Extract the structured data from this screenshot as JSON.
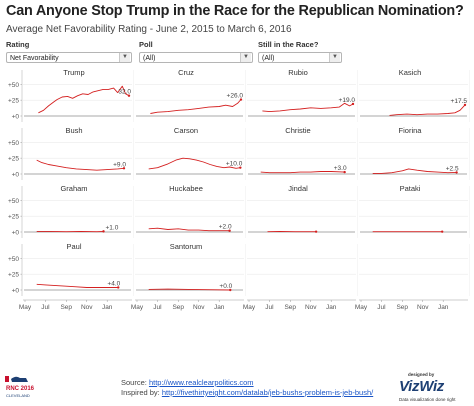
{
  "header": {
    "title": "Can Anyone Stop Trump in the Race for the Republican Nomination?",
    "subtitle": "Average Net Favorability Rating - June 2, 2015 to March 6, 2016"
  },
  "filters": [
    {
      "label": "Rating",
      "value": "Net Favorability"
    },
    {
      "label": "Poll",
      "value": "(All)"
    },
    {
      "label": "Still in the Race?",
      "value": "(All)"
    }
  ],
  "footer": {
    "source_prefix": "Source: ",
    "source_link": "http://www.realclearpolitics.com",
    "inspired_prefix": "Inspired by: ",
    "inspired_link": "http://fivethirtyeight.com/datalab/jeb-bushs-problem-is-jeb-bush/",
    "logo_text": "RNC 2016",
    "logo_sub": "CLEVELAND",
    "brand_top": "designed by",
    "brand": "VizWiz",
    "brand_sub": "Data visualization done right"
  },
  "colors": {
    "line": "#d42020",
    "grid": "#e6e6e6",
    "zero_line": "#555555"
  },
  "chart_data": {
    "type": "line",
    "title": "Can Anyone Stop Trump in the Race for the Republican Nomination?",
    "subtitle": "Average Net Favorability Rating - June 2, 2015 to March 6, 2016",
    "ylabel": "",
    "xlabel": "",
    "y_ticks": [
      "+50",
      "+25",
      "+0"
    ],
    "y_tick_values": [
      50,
      25,
      0
    ],
    "ylim": [
      0,
      60
    ],
    "x_ticks": [
      "May",
      "Jul",
      "Sep",
      "Nov",
      "Jan"
    ],
    "x_tick_months": [
      "2015-05",
      "2015-07",
      "2015-09",
      "2015-11",
      "2016-01"
    ],
    "x_range": [
      "2015-05-01",
      "2016-03-06"
    ],
    "grid": true,
    "panels": [
      {
        "name": "Trump",
        "end_label": "32.0",
        "series": [
          [
            "2015-06-10",
            5
          ],
          [
            "2015-06-25",
            9
          ],
          [
            "2015-07-10",
            16
          ],
          [
            "2015-07-25",
            22
          ],
          [
            "2015-08-05",
            26
          ],
          [
            "2015-08-20",
            30
          ],
          [
            "2015-09-05",
            31
          ],
          [
            "2015-09-20",
            28
          ],
          [
            "2015-10-05",
            32
          ],
          [
            "2015-10-20",
            35
          ],
          [
            "2015-11-05",
            34
          ],
          [
            "2015-11-20",
            38
          ],
          [
            "2015-12-05",
            40
          ],
          [
            "2015-12-20",
            42
          ],
          [
            "2016-01-05",
            42
          ],
          [
            "2016-01-20",
            44
          ],
          [
            "2016-02-01",
            37
          ],
          [
            "2016-02-15",
            47
          ],
          [
            "2016-02-25",
            35
          ],
          [
            "2016-03-06",
            32
          ]
        ]
      },
      {
        "name": "Cruz",
        "end_label": "+26.0",
        "series": [
          [
            "2015-06-10",
            4
          ],
          [
            "2015-07-01",
            6
          ],
          [
            "2015-08-01",
            7
          ],
          [
            "2015-09-01",
            9
          ],
          [
            "2015-10-01",
            10
          ],
          [
            "2015-11-01",
            12
          ],
          [
            "2015-12-01",
            14
          ],
          [
            "2016-01-01",
            15
          ],
          [
            "2016-01-20",
            17
          ],
          [
            "2016-02-10",
            15
          ],
          [
            "2016-02-25",
            20
          ],
          [
            "2016-03-06",
            26
          ]
        ]
      },
      {
        "name": "Rubio",
        "end_label": "+19.0",
        "series": [
          [
            "2015-06-10",
            8
          ],
          [
            "2015-07-01",
            7
          ],
          [
            "2015-08-01",
            8
          ],
          [
            "2015-09-01",
            10
          ],
          [
            "2015-10-01",
            11
          ],
          [
            "2015-11-01",
            13
          ],
          [
            "2015-12-01",
            12
          ],
          [
            "2016-01-01",
            13
          ],
          [
            "2016-01-25",
            14
          ],
          [
            "2016-02-10",
            20
          ],
          [
            "2016-02-25",
            16
          ],
          [
            "2016-03-06",
            19
          ]
        ]
      },
      {
        "name": "Kasich",
        "end_label": "+17.5",
        "series": [
          [
            "2015-07-25",
            1
          ],
          [
            "2015-08-15",
            2
          ],
          [
            "2015-09-15",
            3
          ],
          [
            "2015-10-15",
            2
          ],
          [
            "2015-11-15",
            3
          ],
          [
            "2015-12-15",
            3
          ],
          [
            "2016-01-15",
            4
          ],
          [
            "2016-02-05",
            5
          ],
          [
            "2016-02-20",
            9
          ],
          [
            "2016-03-06",
            17.5
          ]
        ]
      },
      {
        "name": "Bush",
        "end_label": "+9.0",
        "series": [
          [
            "2015-06-05",
            22
          ],
          [
            "2015-06-20",
            18
          ],
          [
            "2015-07-10",
            15
          ],
          [
            "2015-08-01",
            13
          ],
          [
            "2015-09-01",
            10
          ],
          [
            "2015-10-01",
            8
          ],
          [
            "2015-11-01",
            7
          ],
          [
            "2015-12-01",
            6
          ],
          [
            "2016-01-01",
            7
          ],
          [
            "2016-02-01",
            8
          ],
          [
            "2016-02-20",
            9
          ]
        ]
      },
      {
        "name": "Carson",
        "end_label": "+10.0",
        "series": [
          [
            "2015-06-05",
            8
          ],
          [
            "2015-07-01",
            10
          ],
          [
            "2015-08-01",
            16
          ],
          [
            "2015-08-25",
            22
          ],
          [
            "2015-09-15",
            25
          ],
          [
            "2015-10-05",
            24
          ],
          [
            "2015-10-25",
            22
          ],
          [
            "2015-11-15",
            19
          ],
          [
            "2015-12-05",
            15
          ],
          [
            "2015-12-25",
            12
          ],
          [
            "2016-01-15",
            10
          ],
          [
            "2016-02-01",
            11
          ],
          [
            "2016-02-20",
            9
          ],
          [
            "2016-03-04",
            10
          ]
        ]
      },
      {
        "name": "Christie",
        "end_label": "+3.0",
        "series": [
          [
            "2015-06-05",
            3
          ],
          [
            "2015-07-01",
            2
          ],
          [
            "2015-08-01",
            2
          ],
          [
            "2015-09-01",
            2
          ],
          [
            "2015-10-01",
            3
          ],
          [
            "2015-11-01",
            3
          ],
          [
            "2015-12-01",
            4
          ],
          [
            "2016-01-01",
            4
          ],
          [
            "2016-02-10",
            3
          ]
        ]
      },
      {
        "name": "Fiorina",
        "end_label": "+2.5",
        "series": [
          [
            "2015-06-05",
            1
          ],
          [
            "2015-07-01",
            1
          ],
          [
            "2015-08-01",
            2
          ],
          [
            "2015-09-01",
            5
          ],
          [
            "2015-09-20",
            8
          ],
          [
            "2015-10-15",
            6
          ],
          [
            "2015-11-15",
            4
          ],
          [
            "2015-12-15",
            3
          ],
          [
            "2016-01-15",
            2
          ],
          [
            "2016-02-10",
            2.5
          ]
        ]
      },
      {
        "name": "Graham",
        "end_label": "+1.0",
        "series": [
          [
            "2015-06-05",
            1
          ],
          [
            "2015-07-15",
            1
          ],
          [
            "2015-09-01",
            0.5
          ],
          [
            "2015-10-15",
            1
          ],
          [
            "2015-12-01",
            0.5
          ],
          [
            "2015-12-21",
            1
          ]
        ]
      },
      {
        "name": "Huckabee",
        "end_label": "+2.0",
        "series": [
          [
            "2015-06-05",
            5
          ],
          [
            "2015-07-01",
            6
          ],
          [
            "2015-08-01",
            4
          ],
          [
            "2015-09-01",
            5
          ],
          [
            "2015-10-01",
            3
          ],
          [
            "2015-11-01",
            3
          ],
          [
            "2015-12-01",
            2
          ],
          [
            "2016-01-01",
            2
          ],
          [
            "2016-02-01",
            2
          ]
        ]
      },
      {
        "name": "Jindal",
        "end_label": "",
        "series": [
          [
            "2015-06-25",
            0.5
          ],
          [
            "2015-08-01",
            1
          ],
          [
            "2015-09-15",
            0.5
          ],
          [
            "2015-11-17",
            0.5
          ]
        ]
      },
      {
        "name": "Pataki",
        "end_label": "",
        "series": [
          [
            "2015-06-05",
            0.5
          ],
          [
            "2015-08-01",
            0.5
          ],
          [
            "2015-10-01",
            0.5
          ],
          [
            "2015-12-29",
            0.5
          ]
        ]
      },
      {
        "name": "Paul",
        "end_label": "+4.0",
        "series": [
          [
            "2015-06-05",
            9
          ],
          [
            "2015-07-01",
            8
          ],
          [
            "2015-08-01",
            7
          ],
          [
            "2015-09-01",
            6
          ],
          [
            "2015-10-01",
            5
          ],
          [
            "2015-11-01",
            4
          ],
          [
            "2015-12-01",
            4
          ],
          [
            "2016-01-01",
            4
          ],
          [
            "2016-02-03",
            4
          ]
        ]
      },
      {
        "name": "Santorum",
        "end_label": "+0.0",
        "series": [
          [
            "2015-06-05",
            1
          ],
          [
            "2015-08-01",
            1.5
          ],
          [
            "2015-10-01",
            1
          ],
          [
            "2015-12-01",
            0.5
          ],
          [
            "2016-02-03",
            0
          ]
        ]
      }
    ]
  }
}
